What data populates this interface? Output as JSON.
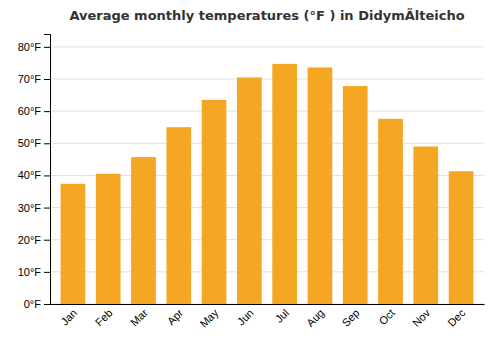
{
  "chart_data": {
    "type": "bar",
    "title": "Average monthly temperatures (°F ) in DidymÃlteicho",
    "categories": [
      "Jan",
      "Feb",
      "Mar",
      "Apr",
      "May",
      "Jun",
      "Jul",
      "Aug",
      "Sep",
      "Oct",
      "Nov",
      "Dec"
    ],
    "values": [
      37.4,
      40.5,
      45.7,
      55.0,
      63.5,
      70.5,
      74.7,
      73.6,
      67.8,
      57.6,
      49.0,
      41.3
    ],
    "color": "#F5A623",
    "ylim": [
      0,
      84
    ],
    "yticks": [
      {
        "value": 0,
        "label": "0°F"
      },
      {
        "value": 10,
        "label": "10°F"
      },
      {
        "value": 20,
        "label": "20°F"
      },
      {
        "value": 30,
        "label": "30°F"
      },
      {
        "value": 40,
        "label": "40°F"
      },
      {
        "value": 50,
        "label": "50°F"
      },
      {
        "value": 60,
        "label": "60°F"
      },
      {
        "value": 70,
        "label": "70°F"
      },
      {
        "value": 80,
        "label": "80°F"
      }
    ],
    "grid": true
  }
}
